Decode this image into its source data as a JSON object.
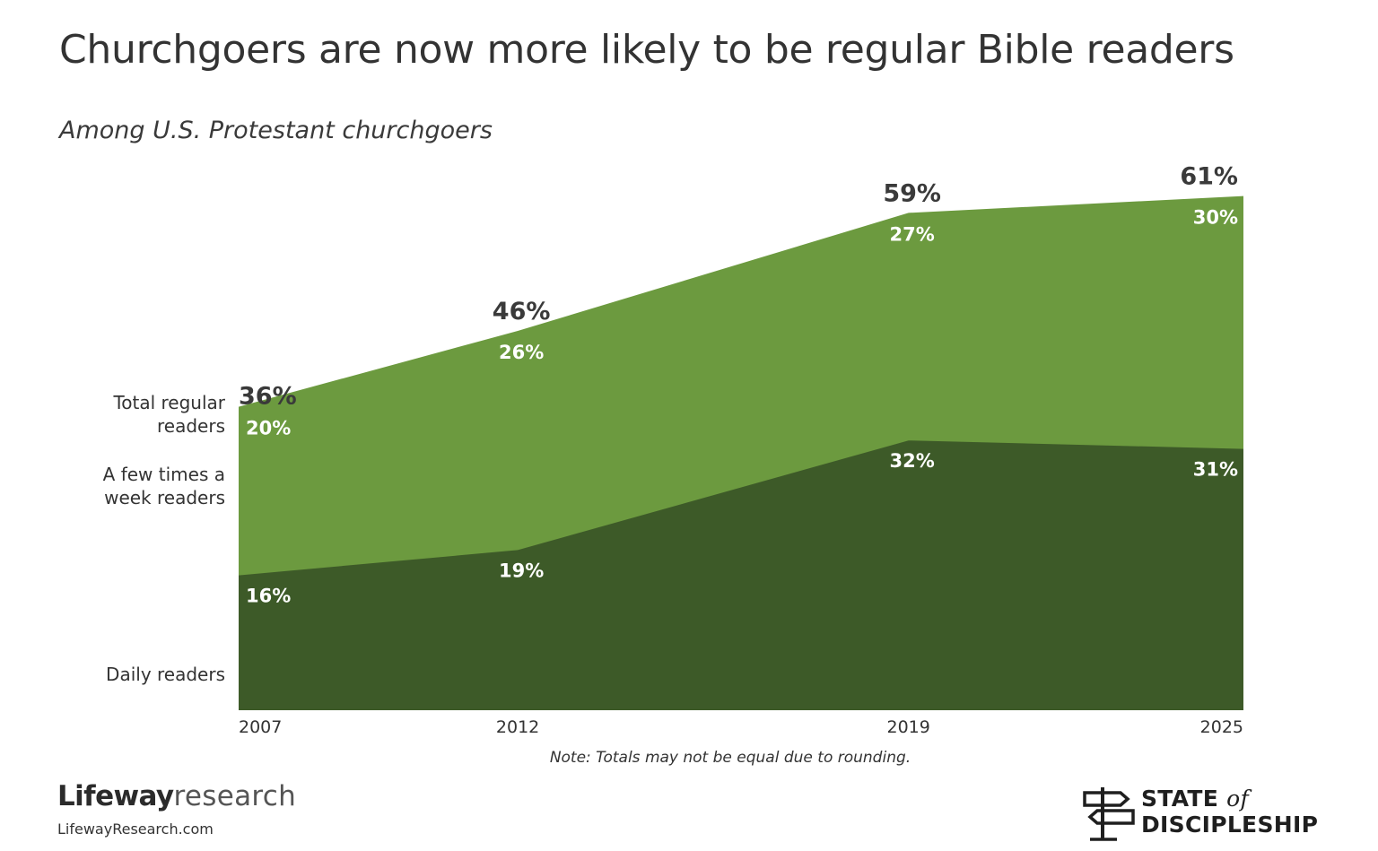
{
  "title": "Churchgoers are now more likely to be regular Bible readers",
  "subtitle": "Among U.S. Protestant churchgoers",
  "note": "Note: Totals may not be equal due to rounding.",
  "brand": {
    "name_bold": "Lifeway",
    "name_light": "research",
    "site": "LifewayResearch.com"
  },
  "sod": {
    "line1": "STATE",
    "of": "of",
    "line2": "DISCIPLESHIP"
  },
  "colors": {
    "light": "#6c9a3f",
    "dark": "#3d5a28",
    "text_dark": "#3a3a3a",
    "text_light": "#ffffff"
  },
  "row_labels": {
    "total": [
      "Total regular",
      "readers"
    ],
    "few": [
      "A few times a",
      "week readers"
    ],
    "daily": [
      "Daily readers"
    ]
  },
  "chart_data": {
    "type": "area",
    "title": "Churchgoers are now more likely to be regular Bible readers",
    "subtitle": "Among U.S. Protestant churchgoers",
    "x": [
      2007,
      2012,
      2019,
      2025
    ],
    "x_labels": [
      "2007",
      "2012",
      "2019",
      "2025"
    ],
    "stacked": true,
    "series": [
      {
        "name": "Daily readers",
        "values": [
          16,
          19,
          32,
          31
        ],
        "labels": [
          "16%",
          "19%",
          "32%",
          "31%"
        ]
      },
      {
        "name": "A few times a week readers",
        "values": [
          20,
          26,
          27,
          30
        ],
        "labels": [
          "20%",
          "26%",
          "27%",
          "30%"
        ]
      }
    ],
    "totals": {
      "name": "Total regular readers",
      "values": [
        36,
        46,
        59,
        61
      ],
      "labels": [
        "36%",
        "46%",
        "59%",
        "61%"
      ]
    },
    "ylim": [
      0,
      61
    ]
  }
}
